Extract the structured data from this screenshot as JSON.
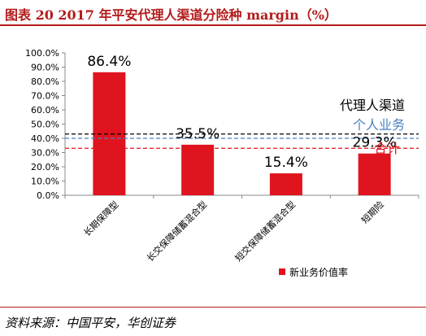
{
  "title": "图表 20   2017 年平安代理人渠道分险种 margin（%）",
  "source": "资料来源：中国平安，华创证券",
  "chart_data": {
    "type": "bar",
    "categories": [
      "长期保障型",
      "长交保障储蓄混合型",
      "短交保障储蓄混合型",
      "短期险"
    ],
    "series": [
      {
        "name": "新业务价值率",
        "values": [
          86.4,
          35.5,
          15.4,
          29.3
        ],
        "color": "#e0141e"
      }
    ],
    "data_labels": [
      "86.4%",
      "35.5%",
      "15.4%",
      "29.3%"
    ],
    "reference_lines": [
      {
        "name": "代理人渠道",
        "value": 43.0,
        "color": "#000000"
      },
      {
        "name": "个人业务",
        "value": 40.0,
        "color": "#4a7fc1"
      },
      {
        "name": "合计",
        "value": 33.0,
        "color": "#e0141e"
      }
    ],
    "yticks": [
      "0.0%",
      "10.0%",
      "20.0%",
      "30.0%",
      "40.0%",
      "50.0%",
      "60.0%",
      "70.0%",
      "80.0%",
      "90.0%",
      "100.0%"
    ],
    "ylim": [
      0,
      100
    ],
    "legend_position": "bottom-right",
    "grid": false
  }
}
